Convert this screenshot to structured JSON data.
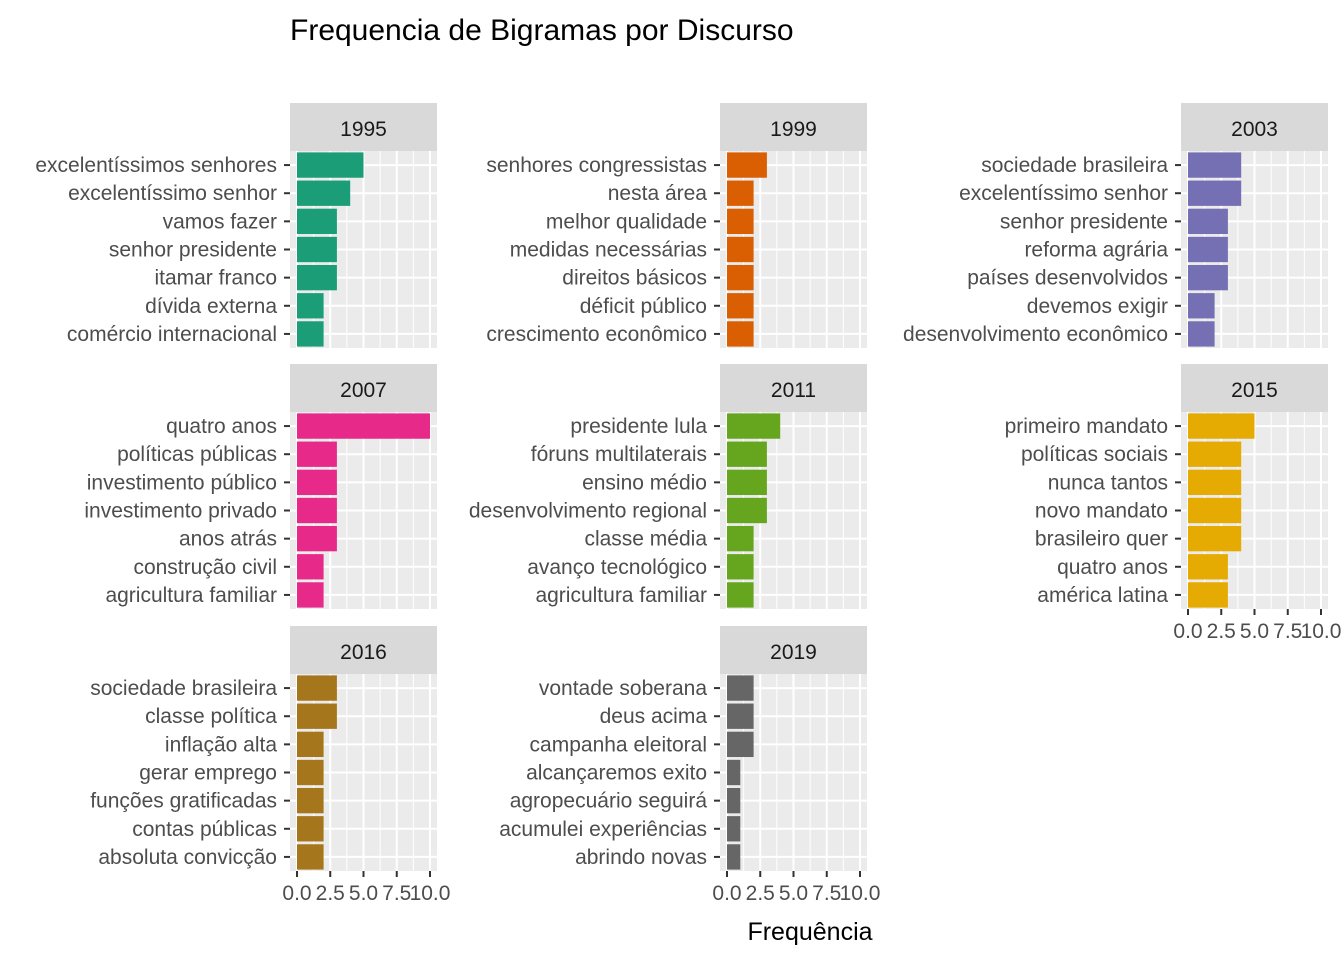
{
  "chart_data": {
    "type": "bar",
    "orientation": "horizontal",
    "title": "Frequencia de Bigramas por Discurso",
    "xlabel": "Frequência",
    "ylabel": "",
    "xlim": [
      0,
      10
    ],
    "x_ticks": [
      0.0,
      2.5,
      5.0,
      7.5,
      10.0
    ],
    "x_tick_labels": [
      "0.0",
      "2.5",
      "5.0",
      "7.5",
      "10.0"
    ],
    "grid": true,
    "legend": "none",
    "facets": [
      {
        "label": "1995",
        "color": "#1B9E77",
        "categories": [
          "excelentíssimos senhores",
          "excelentíssimo senhor",
          "vamos fazer",
          "senhor presidente",
          "itamar franco",
          "dívida externa",
          "comércio internacional"
        ],
        "values": [
          5,
          4,
          3,
          3,
          3,
          2,
          2
        ]
      },
      {
        "label": "1999",
        "color": "#D95F02",
        "categories": [
          "senhores congressistas",
          "nesta área",
          "melhor qualidade",
          "medidas necessárias",
          "direitos básicos",
          "déficit público",
          "crescimento econômico"
        ],
        "values": [
          3,
          2,
          2,
          2,
          2,
          2,
          2
        ]
      },
      {
        "label": "2003",
        "color": "#7570B3",
        "categories": [
          "sociedade brasileira",
          "excelentíssimo senhor",
          "senhor presidente",
          "reforma agrária",
          "países desenvolvidos",
          "devemos exigir",
          "desenvolvimento econômico"
        ],
        "values": [
          4,
          4,
          3,
          3,
          3,
          2,
          2
        ]
      },
      {
        "label": "2007",
        "color": "#E7298A",
        "categories": [
          "quatro anos",
          "políticas públicas",
          "investimento público",
          "investimento privado",
          "anos atrás",
          "construção civil",
          "agricultura familiar"
        ],
        "values": [
          10,
          3,
          3,
          3,
          3,
          2,
          2
        ]
      },
      {
        "label": "2011",
        "color": "#66A61E",
        "categories": [
          "presidente lula",
          "fóruns multilaterais",
          "ensino médio",
          "desenvolvimento regional",
          "classe média",
          "avanço tecnológico",
          "agricultura familiar"
        ],
        "values": [
          4,
          3,
          3,
          3,
          2,
          2,
          2
        ]
      },
      {
        "label": "2015",
        "color": "#E6AB02",
        "categories": [
          "primeiro mandato",
          "políticas sociais",
          "nunca tantos",
          "novo mandato",
          "brasileiro quer",
          "quatro anos",
          "américa latina"
        ],
        "values": [
          5,
          4,
          4,
          4,
          4,
          3,
          3
        ]
      },
      {
        "label": "2016",
        "color": "#A6761D",
        "categories": [
          "sociedade brasileira",
          "classe política",
          "inflação alta",
          "gerar emprego",
          "funções gratificadas",
          "contas públicas",
          "absoluta convicção"
        ],
        "values": [
          3,
          3,
          2,
          2,
          2,
          2,
          2
        ]
      },
      {
        "label": "2019",
        "color": "#666666",
        "categories": [
          "vontade soberana",
          "deus acima",
          "campanha eleitoral",
          "alcançaremos exito",
          "agropecuário seguirá",
          "acumulei experiências",
          "abrindo novas"
        ],
        "values": [
          2,
          2,
          2,
          1,
          1,
          1,
          1
        ]
      }
    ]
  }
}
